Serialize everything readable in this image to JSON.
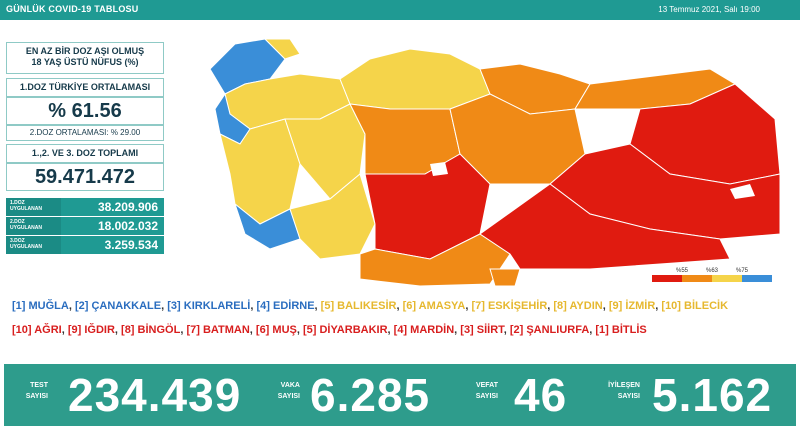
{
  "header": {
    "title": "GÜNLÜK COVID-19 TABLOSU",
    "date": "13 Temmuz 2021, Salı 19:00"
  },
  "panel": {
    "heading_line1": "EN AZ BİR DOZ AŞI OLMUŞ",
    "heading_line2": "18 YAŞ ÜSTÜ NÜFUS (%)",
    "dose1_title": "1.DOZ TÜRKİYE ORTALAMASI",
    "dose1_value": "% 61.56",
    "dose2_text": "2.DOZ ORTALAMASI: % 29.00",
    "total_title": "1.,2. VE 3. DOZ TOPLAMI",
    "total_value": "59.471.472"
  },
  "doses": [
    {
      "label_a": "1.DOZ",
      "label_b": "UYGULANAN",
      "value": "38.209.906"
    },
    {
      "label_a": "2.DOZ",
      "label_b": "UYGULANAN",
      "value": "18.002.032"
    },
    {
      "label_a": "3.DOZ",
      "label_b": "UYGULANAN",
      "value": "3.259.534"
    }
  ],
  "legend": {
    "labels": [
      "%55",
      "%63",
      "%75"
    ],
    "colors": [
      "#e01b10",
      "#f08a16",
      "#f5d44a",
      "#3a8ed8"
    ]
  },
  "best_list": {
    "items": [
      {
        "text": "[1] MUĞLA",
        "color": "green"
      },
      {
        "text": "[2] ÇANAKKALE",
        "color": "green"
      },
      {
        "text": "[3] KIRKLARELİ",
        "color": "green"
      },
      {
        "text": "[4] EDİRNE",
        "color": "green"
      },
      {
        "text": "[5] BALIKESİR",
        "color": "yellow"
      },
      {
        "text": "[6] AMASYA",
        "color": "yellow"
      },
      {
        "text": "[7] ESKİŞEHİR",
        "color": "yellow"
      },
      {
        "text": "[8] AYDIN",
        "color": "yellow"
      },
      {
        "text": "[9] İZMİR",
        "color": "yellow"
      },
      {
        "text": "[10] BİLECİK",
        "color": "yellow"
      }
    ]
  },
  "worst_list": {
    "items": [
      "[10] AĞRI",
      "[9] IĞDIR",
      "[8] BİNGÖL",
      "[7] BATMAN",
      "[6] MUŞ",
      "[5] DİYARBAKIR",
      "[4] MARDİN",
      "[3] SİİRT",
      "[2] ŞANLIURFA",
      "[1] BİTLİS"
    ]
  },
  "stats": [
    {
      "label_a": "TEST",
      "label_b": "SAYISI",
      "value": "234.439"
    },
    {
      "label_a": "VAKA",
      "label_b": "SAYISI",
      "value": "6.285"
    },
    {
      "label_a": "VEFAT",
      "label_b": "SAYISI",
      "value": "46"
    },
    {
      "label_a": "İYİLEŞEN",
      "label_b": "SAYISI",
      "value": "5.162"
    }
  ]
}
